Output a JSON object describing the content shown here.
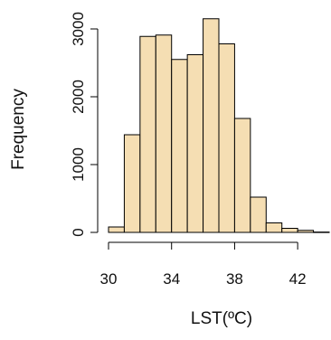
{
  "chart_data": {
    "type": "bar",
    "subtype": "histogram",
    "title": "",
    "xlabel": "LST(ºC)",
    "ylabel": "Frequency",
    "bin_width": 1,
    "bins": [
      {
        "start": 30,
        "end": 31,
        "count": 80
      },
      {
        "start": 31,
        "end": 32,
        "count": 1440
      },
      {
        "start": 32,
        "end": 33,
        "count": 2890
      },
      {
        "start": 33,
        "end": 34,
        "count": 2910
      },
      {
        "start": 34,
        "end": 35,
        "count": 2550
      },
      {
        "start": 35,
        "end": 36,
        "count": 2620
      },
      {
        "start": 36,
        "end": 37,
        "count": 3150
      },
      {
        "start": 37,
        "end": 38,
        "count": 2780
      },
      {
        "start": 38,
        "end": 39,
        "count": 1680
      },
      {
        "start": 39,
        "end": 40,
        "count": 520
      },
      {
        "start": 40,
        "end": 41,
        "count": 140
      },
      {
        "start": 41,
        "end": 42,
        "count": 60
      },
      {
        "start": 42,
        "end": 43,
        "count": 30
      },
      {
        "start": 43,
        "end": 44,
        "count": 5
      }
    ],
    "xlim": [
      30,
      44
    ],
    "ylim": [
      0,
      3200
    ],
    "x_ticks": [
      {
        "value": 30,
        "label": "30"
      },
      {
        "value": 34,
        "label": "34"
      },
      {
        "value": 38,
        "label": "38"
      },
      {
        "value": 42,
        "label": "42"
      }
    ],
    "y_ticks": [
      {
        "value": 0,
        "label": "0"
      },
      {
        "value": 1000,
        "label": "1000"
      },
      {
        "value": 2000,
        "label": "2000"
      },
      {
        "value": 3000,
        "label": "3000"
      }
    ],
    "bar_color": "#f5deb3",
    "grid": false,
    "legend": "none"
  }
}
